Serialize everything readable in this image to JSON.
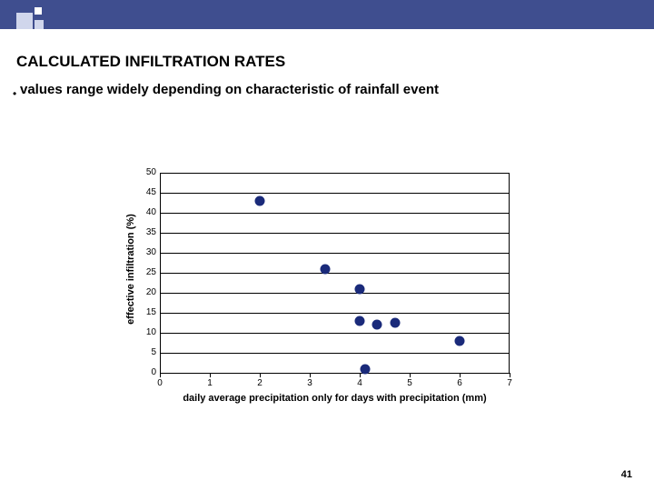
{
  "slide": {
    "title": "CALCULATED INFILTRATION RATES",
    "subtitle": "values range widely depending on characteristic of rainfall event",
    "page_number": "41"
  },
  "chart": {
    "type": "scatter",
    "x_label": "daily average precipitation only for days with precipitation  (mm)",
    "y_label": "effective infiltration (%)",
    "x_ticks": [
      0,
      1,
      2,
      3,
      4,
      5,
      6,
      7
    ],
    "y_ticks": [
      0,
      5,
      10,
      15,
      20,
      25,
      30,
      35,
      40,
      45,
      50
    ],
    "xlim": [
      0,
      7
    ],
    "ylim": [
      0,
      50
    ],
    "point_color": "#1a2a7a",
    "grid_color": "#000000",
    "background_color": "#ffffff",
    "label_fontsize": 11,
    "tick_fontsize": 10,
    "marker_size": 11,
    "points": [
      {
        "x": 2.0,
        "y": 43
      },
      {
        "x": 3.3,
        "y": 26
      },
      {
        "x": 4.0,
        "y": 21
      },
      {
        "x": 4.0,
        "y": 13
      },
      {
        "x": 4.35,
        "y": 12
      },
      {
        "x": 4.1,
        "y": 1
      },
      {
        "x": 4.7,
        "y": 12.5
      },
      {
        "x": 6.0,
        "y": 8
      }
    ]
  },
  "header": {
    "bar_color": "#3f4e8f",
    "square_colors": [
      "#d0d6ec",
      "#ffffff"
    ]
  }
}
